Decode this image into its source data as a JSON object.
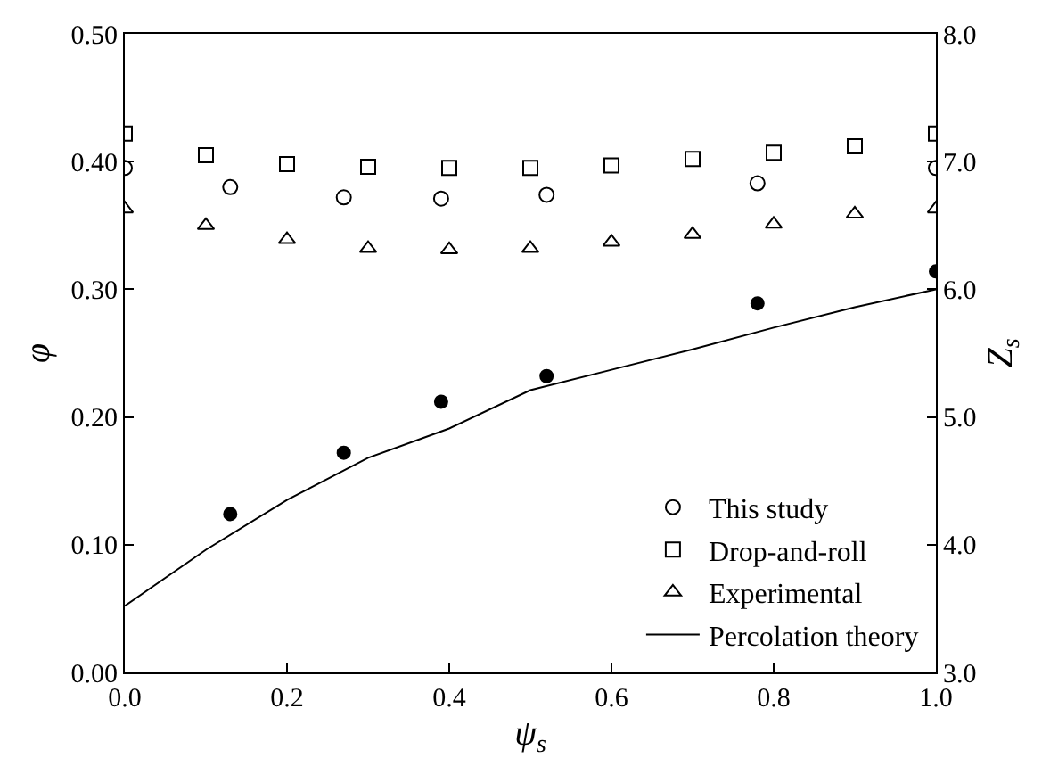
{
  "chart_data": {
    "type": "scatter",
    "xlabel": "ψ$_{s}$",
    "ylabel": "φ",
    "y2label": "Z$_{s}$",
    "xlim": [
      0,
      1
    ],
    "xticks": [
      {
        "value": 0,
        "label": "0.0"
      },
      {
        "value": 0.2,
        "label": "0.2"
      },
      {
        "value": 0.4,
        "label": "0.4"
      },
      {
        "value": 0.6,
        "label": "0.6"
      },
      {
        "value": 0.8,
        "label": "0.8"
      },
      {
        "value": 1,
        "label": "1.0"
      }
    ],
    "ylim": [
      0,
      0.5
    ],
    "yticks": [
      {
        "value": 0,
        "label": "0.00"
      },
      {
        "value": 0.1,
        "label": "0.10"
      },
      {
        "value": 0.2,
        "label": "0.20"
      },
      {
        "value": 0.3,
        "label": "0.30"
      },
      {
        "value": 0.4,
        "label": "0.40"
      },
      {
        "value": 0.5,
        "label": "0.50"
      }
    ],
    "y2lim": [
      3,
      8
    ],
    "y2ticks": [
      {
        "value": 3,
        "label": "3.0"
      },
      {
        "value": 4,
        "label": "4.0"
      },
      {
        "value": 5,
        "label": "5.0"
      },
      {
        "value": 6,
        "label": "6.0"
      },
      {
        "value": 7,
        "label": "7.0"
      },
      {
        "value": 8,
        "label": "8.0"
      }
    ],
    "legend": "bottom right",
    "series": [
      {
        "name": "This study",
        "color": "#000000",
        "marker": "circle",
        "x": [
          0,
          0.13,
          0.27,
          0.39,
          0.52,
          0.78,
          1.0
        ],
        "values": [
          0.395,
          0.38,
          0.372,
          0.371,
          0.374,
          0.383,
          0.395
        ]
      },
      {
        "color": "#000000",
        "marker": "circle",
        "axis": "y2",
        "x": [
          0.13,
          0.27,
          0.39,
          0.52,
          0.78,
          1.0
        ],
        "values": [
          4.24,
          4.72,
          5.12,
          5.32,
          5.89,
          6.14
        ]
      },
      {
        "name": "Drop-and-roll",
        "color": "#000000",
        "marker": "square",
        "x": [
          0,
          0.1,
          0.2,
          0.3,
          0.4,
          0.5,
          0.6,
          0.7,
          0.8,
          0.9,
          1.0
        ],
        "values": [
          0.422,
          0.405,
          0.398,
          0.396,
          0.395,
          0.395,
          0.397,
          0.402,
          0.407,
          0.412,
          0.422
        ]
      },
      {
        "name": "Experimental",
        "color": "#000000",
        "marker": "triangle",
        "x": [
          0,
          0.1,
          0.2,
          0.3,
          0.4,
          0.5,
          0.6,
          0.7,
          0.8,
          0.9,
          1.0
        ],
        "values": [
          0.363,
          0.35,
          0.339,
          0.332,
          0.331,
          0.332,
          0.337,
          0.343,
          0.351,
          0.359,
          0.363
        ]
      },
      {
        "name": "Percolation theory",
        "type": "line",
        "color": "#000000",
        "marker": "none",
        "line_style": "solid",
        "axis": "y2",
        "x": [
          0,
          0.1,
          0.2,
          0.3,
          0.4,
          0.5,
          0.6,
          0.7,
          0.8,
          0.9,
          1.0
        ],
        "values": [
          3.52,
          3.96,
          4.35,
          4.68,
          4.91,
          5.21,
          5.37,
          5.53,
          5.7,
          5.86,
          6.0
        ]
      }
    ]
  }
}
